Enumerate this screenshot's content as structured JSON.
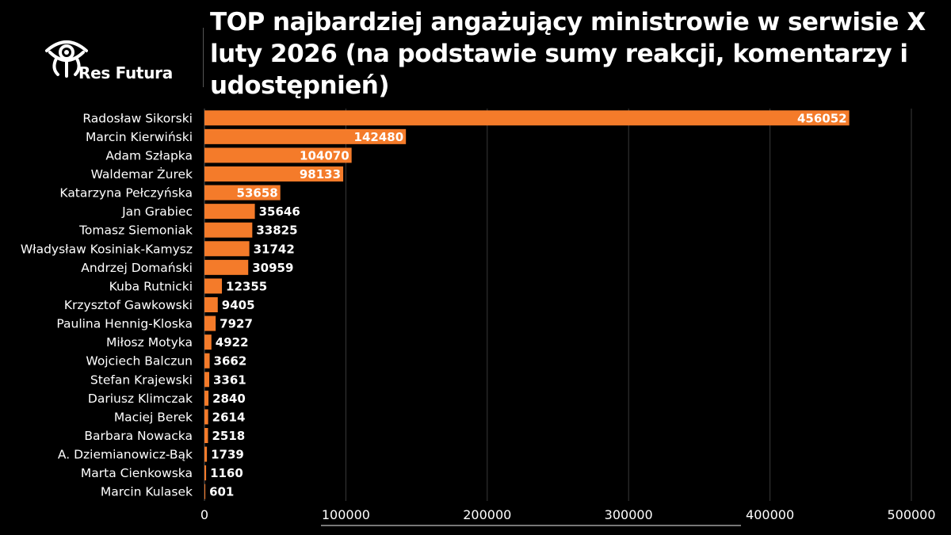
{
  "brand": {
    "name": "Res Futura",
    "icon": "eye-icon"
  },
  "colors": {
    "bar": "#F47B2A",
    "background": "#000000",
    "grid": "#3a3a3a",
    "text": "#ffffff"
  },
  "chart_data": {
    "type": "bar",
    "orientation": "horizontal",
    "title": "TOP najbardziej angażujący ministrowie w serwisie X luty 2026 (na podstawie sumy reakcji, komentarzy i udostępnień)",
    "xlabel": "",
    "ylabel": "",
    "xlim": [
      0,
      500000
    ],
    "xticks": [
      0,
      100000,
      200000,
      300000,
      400000,
      500000
    ],
    "grid": true,
    "categories": [
      "Radosław Sikorski",
      "Marcin Kierwiński",
      "Adam Szłapka",
      "Waldemar Żurek",
      "Katarzyna Pełczyńska",
      "Jan Grabiec",
      "Tomasz Siemoniak",
      "Władysław Kosiniak-Kamysz",
      "Andrzej Domański",
      "Kuba Rutnicki",
      "Krzysztof Gawkowski",
      "Paulina Hennig-Kloska",
      "Miłosz Motyka",
      "Wojciech Balczun",
      "Stefan Krajewski",
      "Dariusz Klimczak",
      "Maciej Berek",
      "Barbara Nowacka",
      "A. Dziemianowicz-Bąk",
      "Marta Cienkowska",
      "Marcin Kulasek"
    ],
    "values": [
      456052,
      142480,
      104070,
      98133,
      53658,
      35646,
      33825,
      31742,
      30959,
      12355,
      9405,
      7927,
      4922,
      3662,
      3361,
      2840,
      2614,
      2518,
      1739,
      1160,
      601
    ]
  }
}
